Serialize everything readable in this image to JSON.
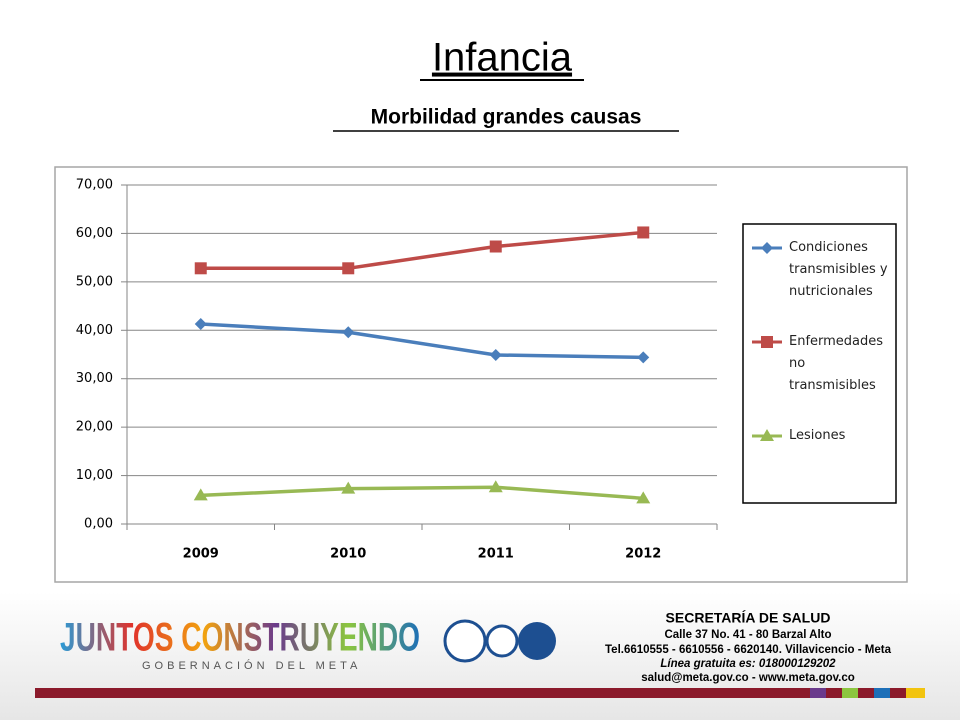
{
  "title": "Infancia",
  "subtitle": "Morbilidad grandes causas",
  "chart_data": {
    "type": "line",
    "categories": [
      "2009",
      "2010",
      "2011",
      "2012"
    ],
    "series": [
      {
        "name": "Condiciones transmisibles y nutricionales",
        "color": "#4a7ebb",
        "marker": "diamond",
        "values": [
          41.3,
          39.6,
          34.9,
          34.4
        ]
      },
      {
        "name": "Enfermedades no transmisibles",
        "color": "#be4b48",
        "marker": "square",
        "values": [
          52.8,
          52.8,
          57.3,
          60.2
        ]
      },
      {
        "name": "Lesiones",
        "color": "#98b954",
        "marker": "triangle",
        "values": [
          5.9,
          7.3,
          7.6,
          5.3
        ]
      }
    ],
    "ylim": [
      0,
      70
    ],
    "yticks": [
      {
        "value": 0,
        "label": "0,00"
      },
      {
        "value": 10,
        "label": "10,00"
      },
      {
        "value": 20,
        "label": "20,00"
      },
      {
        "value": 30,
        "label": "30,00"
      },
      {
        "value": 40,
        "label": "40,00"
      },
      {
        "value": 50,
        "label": "50,00"
      },
      {
        "value": 60,
        "label": "60,00"
      },
      {
        "value": 70,
        "label": "70,00"
      }
    ],
    "grid": true,
    "legend": "right"
  },
  "footer": {
    "logo": "JUNTOS CONSTRUYENDO",
    "logo_sub": "GOBERNACIÓN DEL META",
    "lines": [
      "SECRETARÍA DE SALUD",
      "Calle 37 No. 41 - 80 Barzal Alto",
      "Tel.6610555 - 6610556 - 6620140. Villavicencio - Meta",
      "Línea gratuita es: 018000129202",
      "salud@meta.gov.co - www.meta.gov.co"
    ]
  }
}
